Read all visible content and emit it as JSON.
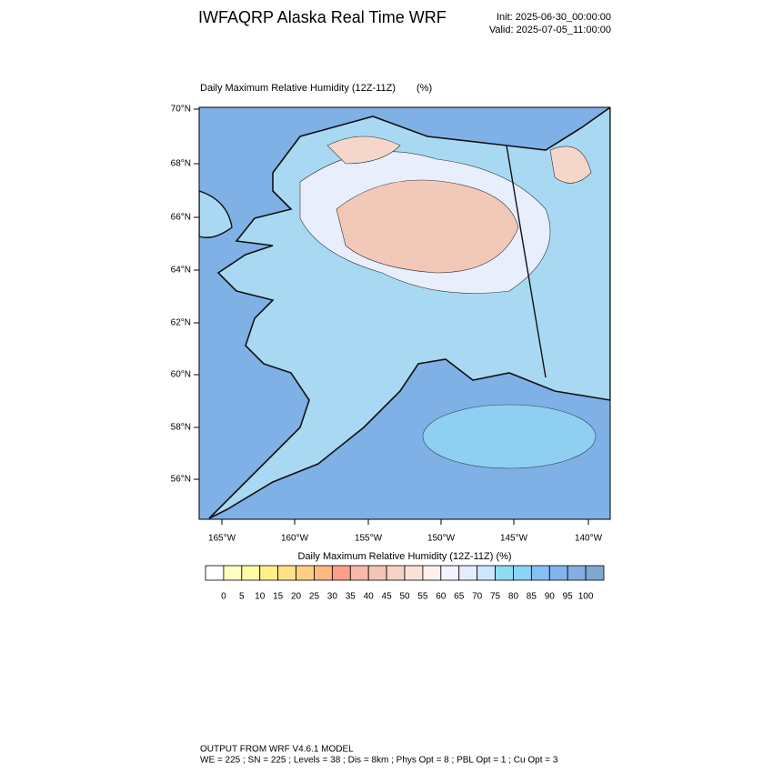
{
  "header": {
    "title": "IWFAQRP Alaska Real Time WRF",
    "init": "Init: 2025-06-30_00:00:00",
    "valid": "Valid: 2025-07-05_11:00:00"
  },
  "map": {
    "title": "Daily Maximum Relative Humidity (12Z-11Z)",
    "units": "(%)",
    "lat_labels": [
      "70°N",
      "68°N",
      "66°N",
      "64°N",
      "62°N",
      "60°N",
      "58°N",
      "56°N"
    ],
    "lon_labels": [
      "165°W",
      "160°W",
      "155°W",
      "150°W",
      "145°W",
      "140°W"
    ]
  },
  "colorbar": {
    "title": "Daily Maximum Relative Humidity (12Z-11Z)  (%)",
    "colors": [
      "#ffffff",
      "#ffffc6",
      "#fffaa8",
      "#fff08c",
      "#ffe18a",
      "#ffcf86",
      "#ffb882",
      "#fca08b",
      "#f7b9aa",
      "#f5c4b8",
      "#f7d2c6",
      "#fae2d8",
      "#fdf0ec",
      "#f5f3ff",
      "#e4ecff",
      "#cfe6ff",
      "#8fdcf5",
      "#8cd3f7",
      "#84c0f5",
      "#82b4ee",
      "#82aee0",
      "#7ea8d0"
    ],
    "labels": [
      "0",
      "5",
      "10",
      "15",
      "20",
      "25",
      "30",
      "35",
      "40",
      "45",
      "50",
      "55",
      "60",
      "65",
      "70",
      "75",
      "80",
      "85",
      "90",
      "95",
      "100"
    ]
  },
  "footer": {
    "line1": "OUTPUT FROM WRF V4.6.1 MODEL",
    "line2": "WE = 225 ; SN = 225 ; Levels = 38 ; Dis = 8km ; Phys Opt = 8 ; PBL Opt = 1 ; Cu Opt = 3"
  }
}
